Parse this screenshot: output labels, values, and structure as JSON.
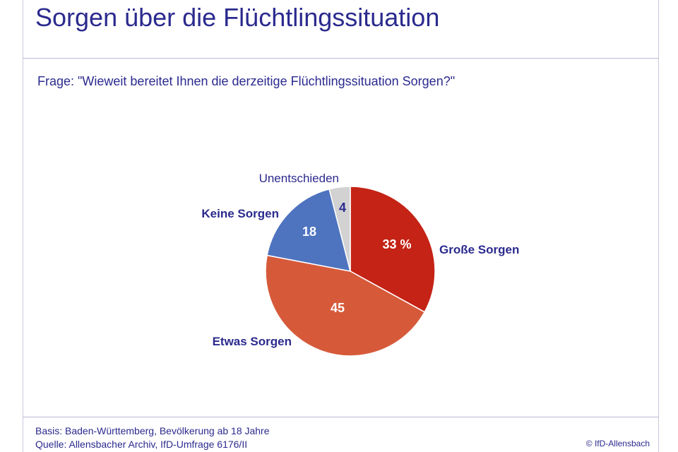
{
  "header": {
    "title": "Sorgen über die Flüchtlingssituation",
    "question": "Frage: \"Wieweit bereitet Ihnen die derzeitige Flüchtlingssituation Sorgen?\""
  },
  "footer": {
    "basis": "Basis: Baden-Württemberg, Bevölkerung ab 18 Jahre",
    "source": "Quelle: Allensbacher Archiv, IfD-Umfrage 6176/II",
    "copyright": "© IfD-Allensbach"
  },
  "chart_data": {
    "type": "pie",
    "title": "Sorgen über die Flüchtlingssituation",
    "slices": [
      {
        "label": "Große Sorgen",
        "value": 33,
        "value_label": "33 %",
        "color": "#c42315"
      },
      {
        "label": "Etwas Sorgen",
        "value": 45,
        "value_label": "45",
        "color": "#d65a3a"
      },
      {
        "label": "Keine Sorgen",
        "value": 18,
        "value_label": "18",
        "color": "#4e73bf"
      },
      {
        "label": "Unentschieden",
        "value": 4,
        "value_label": "4",
        "color": "#d2d2d2"
      }
    ],
    "legend": "none"
  }
}
